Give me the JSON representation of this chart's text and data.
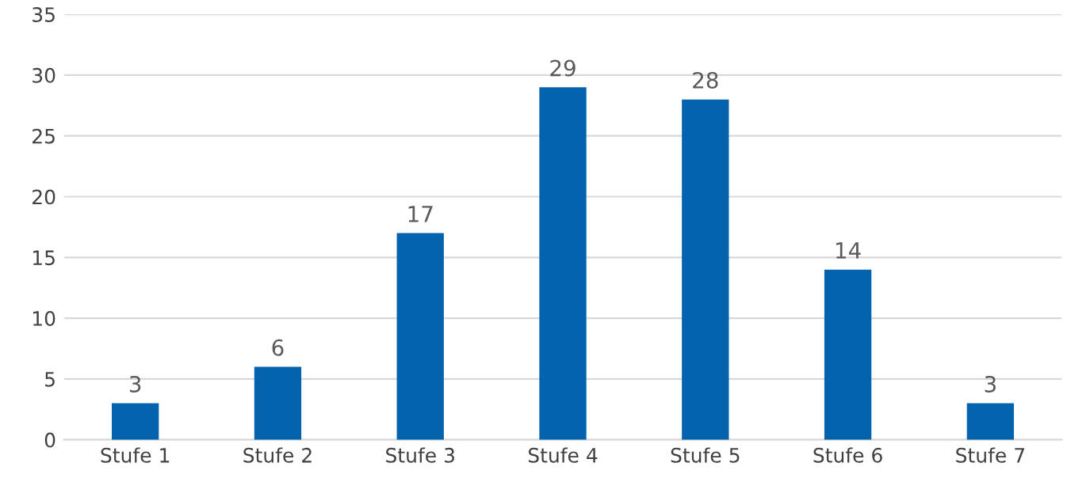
{
  "chart_data": {
    "type": "bar",
    "categories": [
      "Stufe 1",
      "Stufe 2",
      "Stufe 3",
      "Stufe 4",
      "Stufe 5",
      "Stufe 6",
      "Stufe 7"
    ],
    "values": [
      3,
      6,
      17,
      29,
      28,
      14,
      3
    ],
    "color": "#0563ad",
    "ylim": [
      0,
      35
    ],
    "yticks": [
      0,
      5,
      10,
      15,
      20,
      25,
      30,
      35
    ],
    "grid": "y",
    "data_labels": true
  }
}
